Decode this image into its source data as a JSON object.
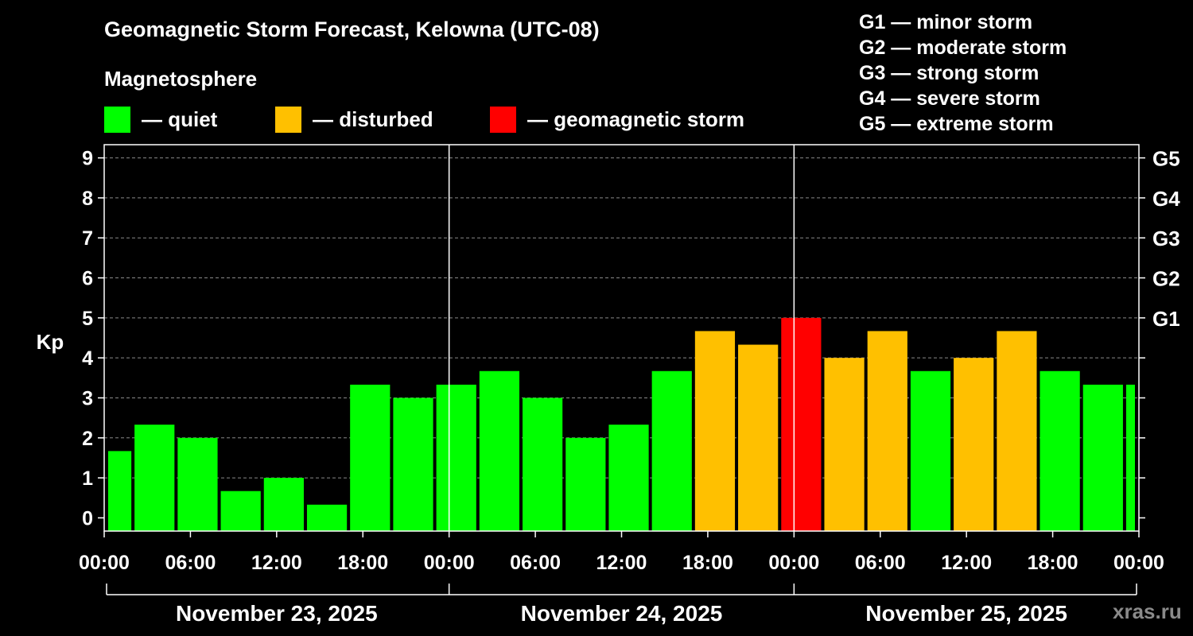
{
  "header": {
    "title": "Geomagnetic Storm Forecast, Kelowna (UTC-08)",
    "magnetosphere_label": "Magnetosphere"
  },
  "legend": [
    {
      "label": "— quiet",
      "color": "#00ff00"
    },
    {
      "label": "— disturbed",
      "color": "#ffc000"
    },
    {
      "label": "— geomagnetic storm",
      "color": "#ff0000"
    }
  ],
  "storm_scale": [
    "G1 — minor storm",
    "G2 — moderate storm",
    "G3 — strong storm",
    "G4 — severe storm",
    "G5 — extreme storm"
  ],
  "watermark": "xras.ru",
  "chart_data": {
    "type": "bar",
    "ylabel": "Kp",
    "ylim": [
      -0.33,
      9.33
    ],
    "y_ticks": [
      0,
      1,
      2,
      3,
      4,
      5,
      6,
      7,
      8,
      9
    ],
    "right_ticks": [
      {
        "value": 5,
        "label": "G1"
      },
      {
        "value": 6,
        "label": "G2"
      },
      {
        "value": 7,
        "label": "G3"
      },
      {
        "value": 8,
        "label": "G4"
      },
      {
        "value": 9,
        "label": "G5"
      }
    ],
    "grid": true,
    "x_tick_labels": [
      "00:00",
      "06:00",
      "12:00",
      "18:00",
      "00:00",
      "06:00",
      "12:00",
      "18:00",
      "00:00",
      "06:00",
      "12:00",
      "18:00",
      "00:00"
    ],
    "x_tick_hours": [
      0,
      6,
      12,
      18,
      24,
      30,
      36,
      42,
      48,
      54,
      60,
      66,
      72
    ],
    "day_labels": [
      "November 23, 2025",
      "November 24, 2025",
      "November 25, 2025"
    ],
    "day_boundaries_hours": [
      24,
      48
    ],
    "bar_interval_hours": 3,
    "bar_start_hour": -1,
    "values": [
      1.67,
      2.33,
      2.0,
      0.67,
      1.0,
      0.33,
      3.33,
      3.0,
      3.33,
      3.67,
      3.0,
      2.0,
      2.33,
      3.67,
      4.67,
      4.33,
      5.0,
      4.0,
      4.67,
      3.67,
      4.0,
      4.67,
      3.67,
      3.33,
      3.33
    ],
    "bar_colors": [
      "#00ff00",
      "#00ff00",
      "#00ff00",
      "#00ff00",
      "#00ff00",
      "#00ff00",
      "#00ff00",
      "#00ff00",
      "#00ff00",
      "#00ff00",
      "#00ff00",
      "#00ff00",
      "#00ff00",
      "#00ff00",
      "#ffc000",
      "#ffc000",
      "#ff0000",
      "#ffc000",
      "#ffc000",
      "#00ff00",
      "#ffc000",
      "#ffc000",
      "#00ff00",
      "#00ff00",
      "#00ff00"
    ]
  }
}
